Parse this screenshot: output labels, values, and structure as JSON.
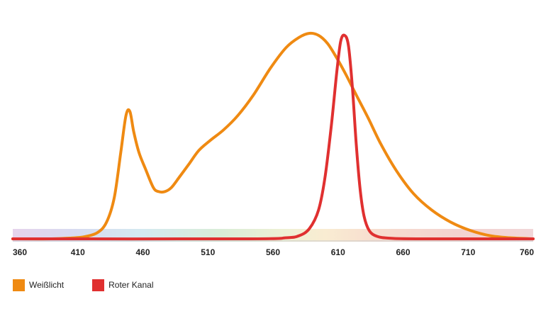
{
  "chart_data": {
    "type": "line",
    "title": "",
    "xlabel": "",
    "ylabel": "",
    "xlim": [
      360,
      760
    ],
    "ylim": [
      0,
      1
    ],
    "xticks": [
      360,
      410,
      460,
      510,
      560,
      610,
      660,
      710,
      760
    ],
    "grid": false,
    "legend_position": "bottom-left",
    "spectrum_band": true,
    "series": [
      {
        "name": "Weißlicht",
        "color": "#ef8a12",
        "x": [
          360,
          390,
          405,
          415,
          425,
          432,
          438,
          443,
          447,
          450,
          453,
          457,
          462,
          468,
          472,
          477,
          482,
          488,
          495,
          503,
          512,
          522,
          533,
          545,
          558,
          570,
          580,
          588,
          595,
          602,
          609,
          616,
          624,
          633,
          643,
          655,
          668,
          682,
          697,
          712,
          727,
          742,
          760
        ],
        "y": [
          0.0,
          0.0,
          0.004,
          0.01,
          0.03,
          0.08,
          0.2,
          0.42,
          0.6,
          0.62,
          0.52,
          0.42,
          0.34,
          0.25,
          0.23,
          0.23,
          0.25,
          0.3,
          0.36,
          0.43,
          0.48,
          0.53,
          0.6,
          0.7,
          0.83,
          0.93,
          0.98,
          1.0,
          0.99,
          0.95,
          0.88,
          0.8,
          0.7,
          0.59,
          0.46,
          0.33,
          0.22,
          0.14,
          0.08,
          0.04,
          0.015,
          0.005,
          0.0
        ]
      },
      {
        "name": "Roter Kanal",
        "color": "#e03030",
        "x": [
          360,
          540,
          570,
          580,
          588,
          595,
          600,
          605,
          609,
          612,
          615,
          618,
          621,
          624,
          627,
          630,
          634,
          640,
          650,
          670,
          760
        ],
        "y": [
          0.0,
          0.0,
          0.005,
          0.015,
          0.05,
          0.14,
          0.3,
          0.56,
          0.81,
          0.96,
          0.99,
          0.94,
          0.74,
          0.46,
          0.24,
          0.11,
          0.04,
          0.012,
          0.003,
          0.0,
          0.0
        ]
      }
    ]
  }
}
